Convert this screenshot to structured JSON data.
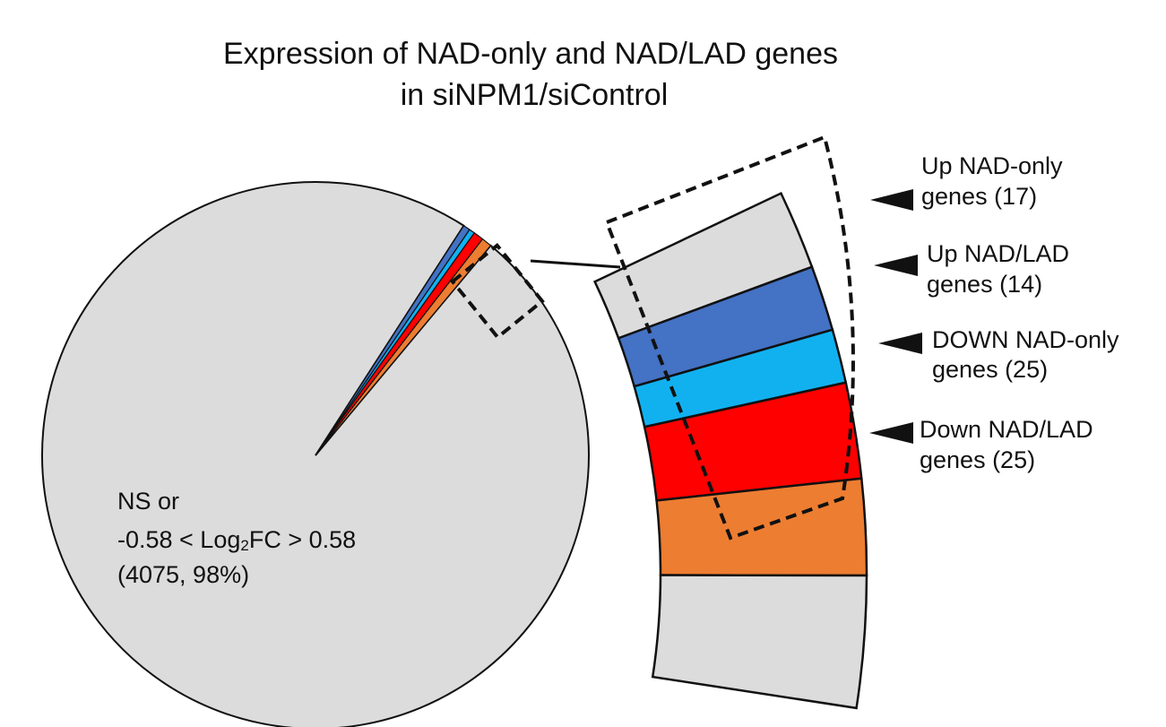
{
  "colors": {
    "ns": "#dcdcdc",
    "up_nad_only": "#4472c4",
    "up_nad_lad": "#11b1f0",
    "down_nad_only": "#ff0000",
    "down_nad_lad": "#ed7d31",
    "outline": "#111111"
  },
  "chart_data": {
    "type": "pie",
    "title": [
      "Expression of NAD-only and NAD/LAD genes",
      "in siNPM1/siControl"
    ],
    "slices": [
      {
        "key": "ns",
        "label_lines": [
          "NS or",
          "-0.58 < Log",
          "(4075, 98%)"
        ],
        "value": 4075,
        "percent": 98,
        "color": "#dcdcdc"
      },
      {
        "key": "up_nad_only",
        "label_lines": [
          "Up NAD-only",
          "genes (17)"
        ],
        "value": 17,
        "color": "#4472c4"
      },
      {
        "key": "up_nad_lad",
        "label_lines": [
          "Up NAD/LAD",
          "genes (14)"
        ],
        "value": 14,
        "color": "#11b1f0"
      },
      {
        "key": "down_nad_only",
        "label_lines": [
          "DOWN NAD-only",
          "genes (25)"
        ],
        "value": 25,
        "color": "#ff0000"
      },
      {
        "key": "down_nad_lad",
        "label_lines": [
          "Down NAD/LAD",
          "genes (25)"
        ],
        "value": 25,
        "color": "#ed7d31"
      }
    ],
    "ns_label_tail": {
      "sub": "2",
      "rest": "FC > 0.58"
    },
    "legend": "callouts-right-with-arrows",
    "inset_zoom": true
  }
}
